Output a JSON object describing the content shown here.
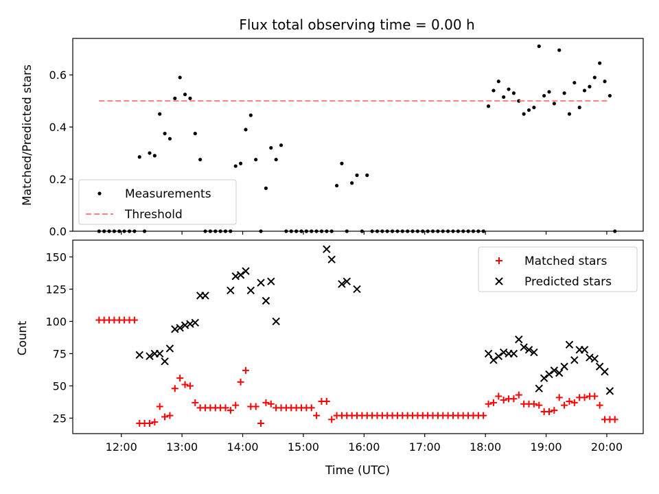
{
  "chart_data": [
    {
      "type": "scatter",
      "title": "Flux total observing time = 0.00 h",
      "xlabel": "",
      "ylabel": "Matched/Predicted stars",
      "x_unit": "time (UTC, hours)",
      "xlim": [
        "11:12",
        "20:36"
      ],
      "ylim": [
        0,
        0.74
      ],
      "y_ticks": [
        "0.0",
        "0.2",
        "0.4",
        "0.6"
      ],
      "x_ticks": [
        "12:00",
        "13:00",
        "14:00",
        "15:00",
        "16:00",
        "17:00",
        "18:00",
        "19:00",
        "20:00"
      ],
      "show_x_tick_labels": false,
      "grid": false,
      "legend": {
        "position": "lower-left",
        "entries": [
          "Measurements",
          "Threshold"
        ]
      },
      "colors": {
        "Measurements": "#000000",
        "Threshold": "#ff7f7f"
      },
      "series": [
        {
          "name": "Measurements",
          "marker": "dot",
          "x": [
            "11:38",
            "11:43",
            "11:48",
            "11:53",
            "11:58",
            "12:03",
            "12:08",
            "12:13",
            "12:18",
            "12:23",
            "12:28",
            "12:33",
            "12:38",
            "12:43",
            "12:48",
            "12:53",
            "12:58",
            "13:03",
            "13:08",
            "13:13",
            "13:18",
            "13:23",
            "13:28",
            "13:33",
            "13:38",
            "13:43",
            "13:48",
            "13:53",
            "13:58",
            "14:03",
            "14:08",
            "14:13",
            "14:18",
            "14:23",
            "14:28",
            "14:33",
            "14:38",
            "14:43",
            "14:48",
            "14:53",
            "14:58",
            "15:03",
            "15:08",
            "15:13",
            "15:18",
            "15:23",
            "15:28",
            "15:33",
            "15:38",
            "15:43",
            "15:48",
            "15:53",
            "15:58",
            "16:03",
            "16:08",
            "16:13",
            "16:18",
            "16:23",
            "16:28",
            "16:33",
            "16:38",
            "16:43",
            "16:48",
            "16:53",
            "16:58",
            "17:03",
            "17:08",
            "17:13",
            "17:18",
            "17:23",
            "17:28",
            "17:33",
            "17:38",
            "17:43",
            "17:48",
            "17:53",
            "17:58",
            "18:03",
            "18:08",
            "18:13",
            "18:18",
            "18:23",
            "18:28",
            "18:33",
            "18:38",
            "18:43",
            "18:48",
            "18:53",
            "18:58",
            "19:03",
            "19:08",
            "19:13",
            "19:18",
            "19:23",
            "19:28",
            "19:33",
            "19:38",
            "19:43",
            "19:48",
            "19:53",
            "19:58",
            "20:03",
            "20:08"
          ],
          "y": [
            0,
            0,
            0,
            0,
            0,
            0,
            0,
            0,
            0.285,
            0,
            0.3,
            0.29,
            0.45,
            0.375,
            0.355,
            0.51,
            0.59,
            0.525,
            0.51,
            0.375,
            0.275,
            0,
            0,
            0,
            0,
            0,
            0,
            0.25,
            0.26,
            0.39,
            0.445,
            0.275,
            0,
            0.165,
            0.32,
            0.275,
            0.33,
            0,
            0,
            0,
            0,
            0,
            0,
            0,
            0,
            0,
            0,
            0.175,
            0.26,
            0,
            0.185,
            0.215,
            0,
            0.215,
            0,
            0,
            0,
            0,
            0,
            0,
            0,
            0,
            0,
            0,
            0,
            0,
            0,
            0,
            0,
            0,
            0,
            0,
            0,
            0,
            0,
            0,
            0,
            0.48,
            0.54,
            0.575,
            0.515,
            0.545,
            0.53,
            0.5,
            0.45,
            0.465,
            0.475,
            0.71,
            0.52,
            0.535,
            0.49,
            0.695,
            0.53,
            0.45,
            0.57,
            0.475,
            0.54,
            0.555,
            0.59,
            0.645,
            0.575,
            0.52,
            0
          ]
        },
        {
          "name": "Threshold",
          "marker": "dashed-line",
          "x": [
            "11:38",
            "20:03"
          ],
          "y": [
            0.5,
            0.5
          ]
        }
      ]
    },
    {
      "type": "scatter",
      "title": "",
      "xlabel": "Time (UTC)",
      "ylabel": "Count",
      "x_unit": "time (UTC, hours)",
      "xlim": [
        "11:12",
        "20:36"
      ],
      "ylim": [
        13,
        163
      ],
      "y_ticks": [
        "25",
        "50",
        "75",
        "100",
        "125",
        "150"
      ],
      "x_ticks": [
        "12:00",
        "13:00",
        "14:00",
        "15:00",
        "16:00",
        "17:00",
        "18:00",
        "19:00",
        "20:00"
      ],
      "grid": false,
      "legend": {
        "position": "top-right",
        "entries": [
          "Matched stars",
          "Predicted stars"
        ]
      },
      "colors": {
        "Matched stars": "#ff0000",
        "Predicted stars": "#000000"
      },
      "series": [
        {
          "name": "Matched stars",
          "marker": "plus",
          "x": [
            "11:38",
            "11:43",
            "11:48",
            "11:53",
            "11:58",
            "12:03",
            "12:08",
            "12:13",
            "12:18",
            "12:23",
            "12:28",
            "12:33",
            "12:38",
            "12:43",
            "12:48",
            "12:53",
            "12:58",
            "13:03",
            "13:08",
            "13:13",
            "13:18",
            "13:23",
            "13:28",
            "13:33",
            "13:38",
            "13:43",
            "13:48",
            "13:53",
            "13:58",
            "14:03",
            "14:08",
            "14:13",
            "14:18",
            "14:23",
            "14:28",
            "14:33",
            "14:38",
            "14:43",
            "14:48",
            "14:53",
            "14:58",
            "15:03",
            "15:08",
            "15:13",
            "15:18",
            "15:23",
            "15:28",
            "15:33",
            "15:38",
            "15:43",
            "15:48",
            "15:53",
            "15:58",
            "16:03",
            "16:08",
            "16:13",
            "16:18",
            "16:23",
            "16:28",
            "16:33",
            "16:38",
            "16:43",
            "16:48",
            "16:53",
            "16:58",
            "17:03",
            "17:08",
            "17:13",
            "17:18",
            "17:23",
            "17:28",
            "17:33",
            "17:38",
            "17:43",
            "17:48",
            "17:53",
            "17:58",
            "18:03",
            "18:08",
            "18:13",
            "18:18",
            "18:23",
            "18:28",
            "18:33",
            "18:38",
            "18:43",
            "18:48",
            "18:53",
            "18:58",
            "19:03",
            "19:08",
            "19:13",
            "19:18",
            "19:23",
            "19:28",
            "19:33",
            "19:38",
            "19:43",
            "19:48",
            "19:53",
            "19:58",
            "20:03",
            "20:08"
          ],
          "y": [
            101,
            101,
            101,
            101,
            101,
            101,
            101,
            101,
            21,
            21,
            21,
            22,
            34,
            26,
            27,
            48,
            56,
            51,
            50,
            37,
            33,
            33,
            33,
            33,
            33,
            33,
            31,
            35,
            53,
            62,
            34,
            34,
            21,
            37,
            36,
            33,
            33,
            33,
            33,
            33,
            33,
            33,
            33,
            27,
            38,
            38,
            24,
            27,
            27,
            27,
            27,
            27,
            27,
            27,
            27,
            27,
            27,
            27,
            27,
            27,
            27,
            27,
            27,
            27,
            27,
            27,
            27,
            27,
            27,
            27,
            27,
            27,
            27,
            27,
            27,
            27,
            27,
            36,
            37,
            42,
            39,
            40,
            40,
            43,
            36,
            36,
            36,
            35,
            30,
            30,
            31,
            41,
            35,
            38,
            37,
            41,
            41,
            42,
            42,
            35,
            24,
            24,
            24
          ]
        },
        {
          "name": "Predicted stars",
          "marker": "x",
          "x": [
            "12:18",
            "12:28",
            "12:33",
            "12:38",
            "12:43",
            "12:48",
            "12:53",
            "12:58",
            "13:03",
            "13:08",
            "13:13",
            "13:18",
            "13:23",
            "13:48",
            "13:53",
            "13:58",
            "14:03",
            "14:08",
            "14:18",
            "14:23",
            "14:28",
            "14:33",
            "15:23",
            "15:28",
            "15:38",
            "15:43",
            "15:53",
            "18:03",
            "18:08",
            "18:13",
            "18:18",
            "18:23",
            "18:28",
            "18:33",
            "18:38",
            "18:43",
            "18:48",
            "18:53",
            "18:58",
            "19:03",
            "19:08",
            "19:13",
            "19:18",
            "19:23",
            "19:28",
            "19:33",
            "19:38",
            "19:43",
            "19:48",
            "19:53",
            "19:58",
            "20:03"
          ],
          "y": [
            74,
            73,
            75,
            75,
            69,
            79,
            94,
            95,
            97,
            98,
            99,
            120,
            120,
            124,
            135,
            136,
            139,
            124,
            130,
            116,
            131,
            100,
            156,
            148,
            129,
            131,
            125,
            75,
            70,
            73,
            76,
            75,
            75,
            86,
            80,
            78,
            76,
            48,
            56,
            59,
            62,
            60,
            65,
            82,
            70,
            78,
            78,
            72,
            71,
            65,
            61,
            46
          ]
        }
      ]
    }
  ]
}
